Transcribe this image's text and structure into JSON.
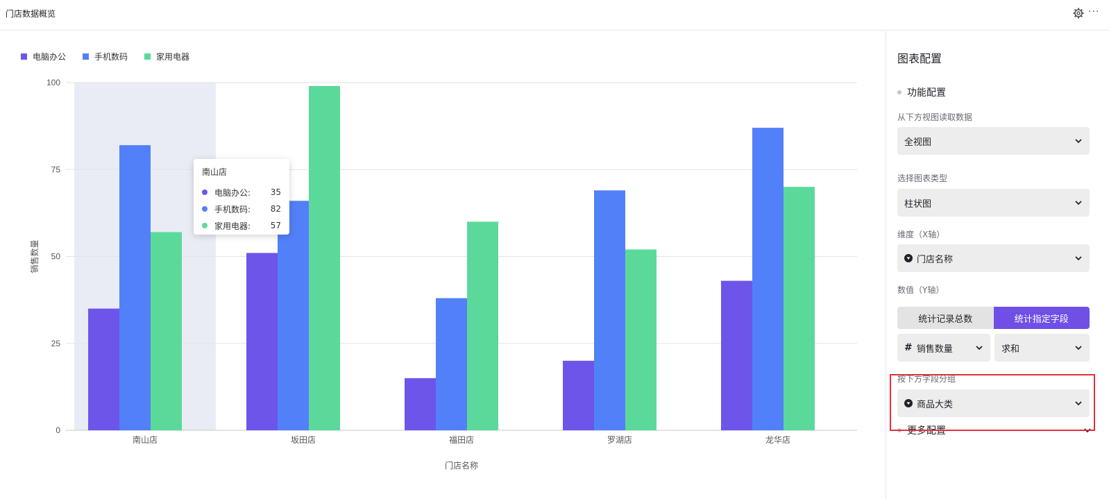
{
  "header": {
    "title": "门店数据概览",
    "settings_icon": "gear-icon",
    "more_icon": "more-icon",
    "more_glyph": "···"
  },
  "colors": {
    "accent": "#6f4fe6",
    "series_purple": "#6d55ea",
    "series_blue": "#5280f8",
    "series_green": "#5bd99a",
    "highlight_band": "#eaecf5",
    "highlight_box": "#e0303a"
  },
  "tooltip": {
    "title": "南山店",
    "rows": [
      {
        "label": "电脑办公:",
        "value": "35"
      },
      {
        "label": "手机数码:",
        "value": "82"
      },
      {
        "label": "家用电器:",
        "value": "57"
      }
    ]
  },
  "chart_data": {
    "type": "bar",
    "categories": [
      "南山店",
      "坂田店",
      "福田店",
      "罗湖店",
      "龙华店"
    ],
    "series": [
      {
        "name": "电脑办公",
        "values": [
          35,
          51,
          15,
          20,
          43
        ]
      },
      {
        "name": "手机数码",
        "values": [
          82,
          66,
          38,
          69,
          87
        ]
      },
      {
        "name": "家用电器",
        "values": [
          57,
          99,
          60,
          52,
          70
        ]
      }
    ],
    "xlabel": "门店名称",
    "ylabel": "销售数量",
    "ylim": [
      0,
      100
    ],
    "yticks": [
      "0",
      "25",
      "50",
      "75",
      "100"
    ],
    "grid": true,
    "legend_position": "top-left",
    "highlighted_category": "南山店"
  },
  "panel": {
    "title": "图表配置",
    "section_function": "功能配置",
    "view_label": "从下方视图读取数据",
    "view_value": "全视图",
    "type_label": "选择图表类型",
    "type_value": "柱状图",
    "x_label": "维度（X轴）",
    "x_value": "门店名称",
    "y_label": "数值（Y轴）",
    "y_option_count": "统计记录总数",
    "y_option_field": "统计指定字段",
    "y_option_selected": "统计指定字段",
    "field_value": "销售数量",
    "agg_value": "求和",
    "group_label": "按下方字段分组",
    "group_value": "商品大类",
    "section_more": "更多配置"
  }
}
